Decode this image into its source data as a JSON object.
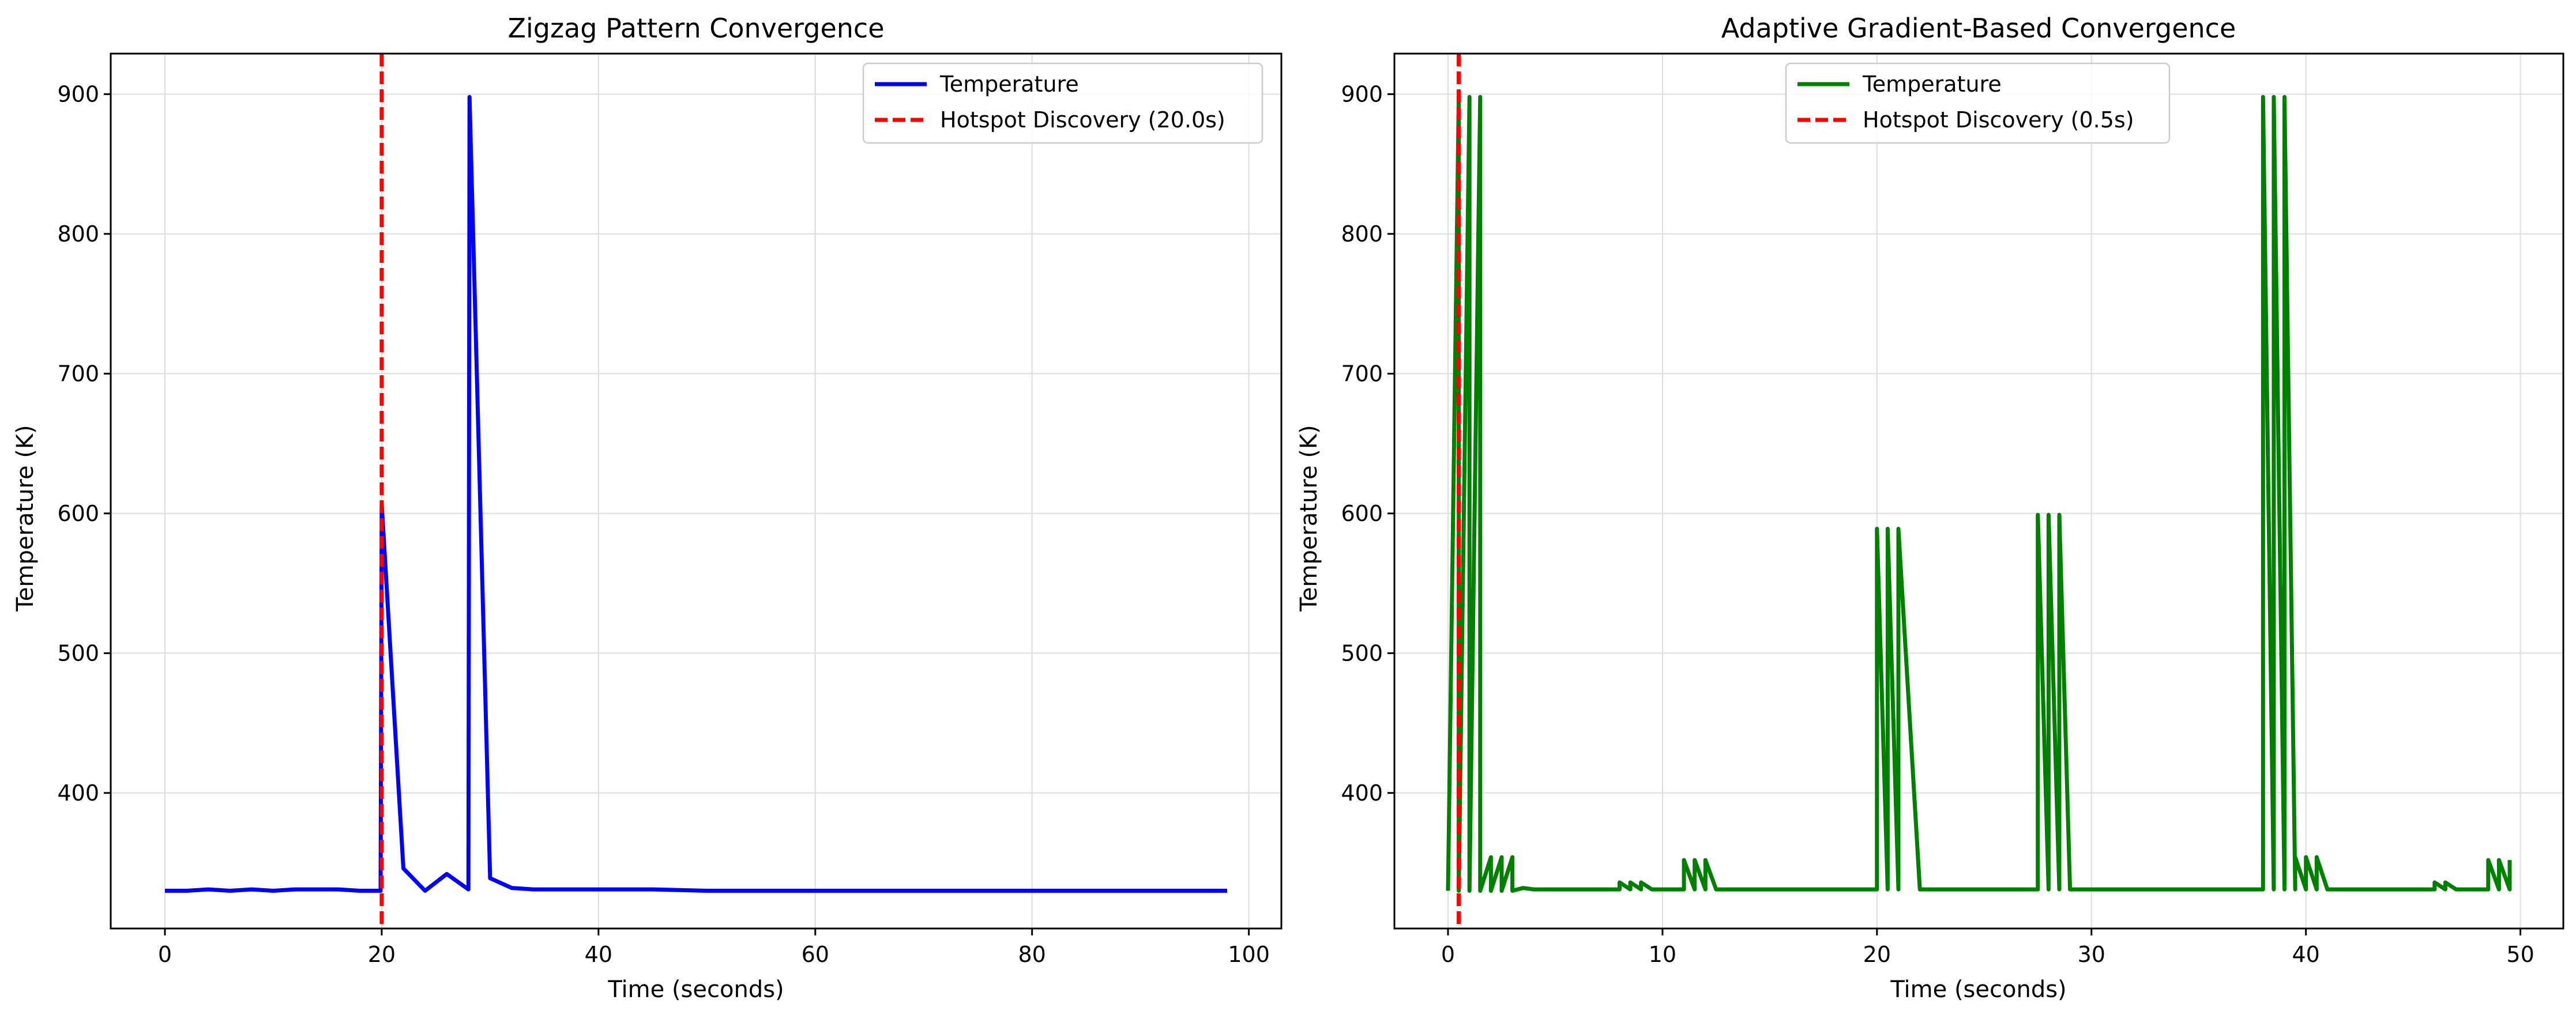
{
  "chart_data": [
    {
      "type": "line",
      "title": "Zigzag Pattern Convergence",
      "xlabel": "Time (seconds)",
      "ylabel": "Temperature (K)",
      "xlim": [
        -5,
        103
      ],
      "ylim": [
        303,
        929
      ],
      "xticks": [
        0,
        20,
        40,
        60,
        80,
        100
      ],
      "yticks": [
        400,
        500,
        600,
        700,
        800,
        900
      ],
      "grid": true,
      "legend_position": "upper-right",
      "series": [
        {
          "name": "Temperature",
          "color": "#0000ff",
          "style": "solid",
          "x": [
            0,
            2,
            4,
            6,
            8,
            10,
            12,
            14,
            16,
            18,
            19.9,
            20,
            22,
            24,
            26,
            28,
            28.1,
            30,
            32,
            34,
            36,
            38,
            40,
            45,
            50,
            55,
            60,
            65,
            70,
            75,
            80,
            85,
            90,
            95,
            98
          ],
          "y": [
            330,
            330,
            331,
            330,
            331,
            330,
            331,
            331,
            331,
            330,
            330,
            607,
            346,
            330,
            342,
            331,
            898,
            339,
            332,
            331,
            331,
            331,
            331,
            331,
            330,
            330,
            330,
            330,
            330,
            330,
            330,
            330,
            330,
            330,
            330
          ]
        }
      ],
      "vline": {
        "x": 20.0,
        "name": "Hotspot Discovery (20.0s)",
        "color": "#ff0000",
        "style": "dashed"
      }
    },
    {
      "type": "line",
      "title": "Adaptive Gradient-Based Convergence",
      "xlabel": "Time (seconds)",
      "ylabel": "Temperature (K)",
      "xlim": [
        -2.5,
        52
      ],
      "ylim": [
        303,
        929
      ],
      "xticks": [
        0,
        10,
        20,
        30,
        40,
        50
      ],
      "yticks": [
        400,
        500,
        600,
        700,
        800,
        900
      ],
      "grid": true,
      "legend_position": "upper-center",
      "series": [
        {
          "name": "Temperature",
          "color": "#008000",
          "style": "solid",
          "x": [
            0,
            0.5,
            0.5,
            1.0,
            1.0,
            1.5,
            1.5,
            2.0,
            2.0,
            2.5,
            2.5,
            3.0,
            3.0,
            3.5,
            4.0,
            5.0,
            6.0,
            7.0,
            7.5,
            8.0,
            8.0,
            8.5,
            8.5,
            9.0,
            9.0,
            9.5,
            10,
            11,
            11,
            11.5,
            11.5,
            12,
            12,
            12.5,
            13,
            15,
            17,
            19.5,
            20,
            20,
            20.5,
            20.5,
            21,
            21,
            22,
            25,
            27,
            27.5,
            27.5,
            28,
            28,
            28.5,
            28.5,
            29,
            32,
            35,
            37.5,
            38,
            38,
            38.5,
            38.5,
            39,
            39,
            39.5,
            39.5,
            40,
            40,
            40.5,
            40.5,
            41,
            43,
            45,
            45.5,
            46,
            46,
            46.5,
            46.5,
            47,
            48.5,
            48.5,
            49,
            49,
            49.5,
            49.5
          ],
          "y": [
            330,
            898,
            330,
            898,
            330,
            898,
            330,
            354,
            330,
            354,
            330,
            354,
            330,
            332,
            331,
            331,
            331,
            331,
            331,
            331,
            336,
            331,
            336,
            331,
            336,
            331,
            331,
            331,
            352,
            331,
            352,
            331,
            352,
            331,
            331,
            331,
            331,
            331,
            331,
            589,
            331,
            589,
            331,
            589,
            331,
            331,
            331,
            331,
            599,
            331,
            599,
            331,
            599,
            331,
            331,
            331,
            331,
            331,
            898,
            331,
            898,
            331,
            898,
            331,
            354,
            331,
            354,
            331,
            354,
            331,
            331,
            331,
            331,
            331,
            336,
            331,
            336,
            331,
            331,
            352,
            331,
            352,
            331,
            352
          ]
        }
      ],
      "vline": {
        "x": 0.5,
        "name": "Hotspot Discovery (0.5s)",
        "color": "#ff0000",
        "style": "dashed"
      }
    }
  ]
}
